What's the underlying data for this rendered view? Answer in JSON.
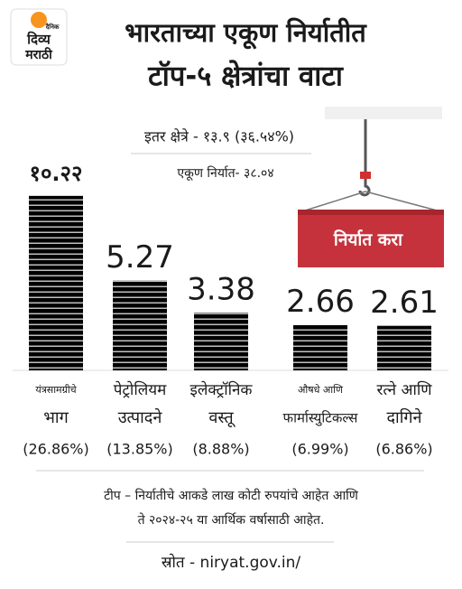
{
  "logo": {
    "top": "दैनिक",
    "line1": "दिव्य",
    "line2": "मराठी"
  },
  "chart_data": {
    "type": "bar",
    "title": [
      "भारताच्या एकूण निर्यातीत",
      "टॉप-५ क्षेत्रांचा वाटा"
    ],
    "subtitle": "इतर क्षेत्रे - १३.९ (३६.५४%)",
    "total": "एकूण निर्यात- ३८.०४",
    "banner": "निर्यात करा",
    "categories": [
      [
        "यंत्रसामग्रीचे",
        "भाग"
      ],
      [
        "पेट्रोलियम",
        "उत्पादने"
      ],
      [
        "इलेक्ट्रॉनिक",
        "वस्तू"
      ],
      [
        "औषधे आणि",
        "फार्मास्युटिकल्स"
      ],
      [
        "रत्ने आणि",
        "दागिने"
      ]
    ],
    "values": [
      10.22,
      5.27,
      3.38,
      2.66,
      2.61
    ],
    "value_labels": [
      "१०.२२",
      "5.27",
      "3.38",
      "2.66",
      "2.61"
    ],
    "share_labels": [
      "(26.86%)",
      "(13.85%)",
      "(8.88%)",
      "(6.99%)",
      "(6.86%)"
    ],
    "color": "#2f9e5f"
  },
  "note": [
    "टीप – निर्यातीचे आकडे लाख कोटी रुपयांचे आहेत आणि",
    "ते २०२४-२५ या आर्थिक वर्षासाठी आहेत."
  ],
  "source": "स्रोत - niryat.gov.in/"
}
